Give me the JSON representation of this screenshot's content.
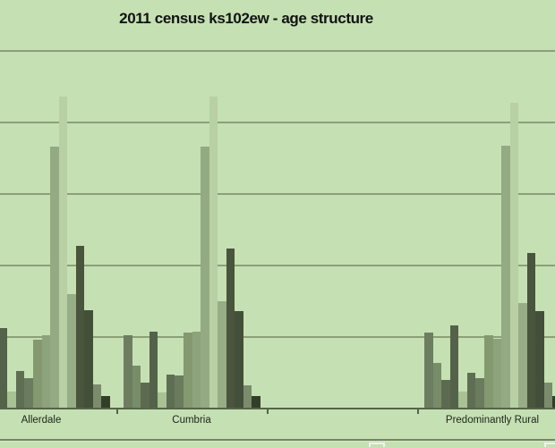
{
  "chart_data": {
    "type": "bar",
    "title": "2011 census ks102ew - age structure",
    "subtitle": "",
    "xlabel": "",
    "ylabel": "",
    "categories": [
      "Allerdale",
      "Cumbria",
      "",
      "Predominantly Rural"
    ],
    "note_visible_layout": "clustered column chart, monochromatic green palette, left edge and bottom legend cropped out of frame; third category slot is empty",
    "ylim": [
      0,
      25
    ],
    "y_unit": "percent",
    "y_gridlines": [
      5,
      10,
      15,
      20,
      25
    ],
    "y_axis_labels_visible": false,
    "grid": true,
    "legend_position": "bottom-cropped",
    "series": [
      {
        "color": "#6d7e60",
        "values": [
          null,
          5.1,
          null,
          5.3
        ]
      },
      {
        "color": "#798c69",
        "values": [
          null,
          3.0,
          null,
          3.2
        ]
      },
      {
        "color": "#5c6b50",
        "values": [
          null,
          1.8,
          null,
          2.0
        ]
      },
      {
        "color": "#536249",
        "values": [
          5.6,
          5.4,
          null,
          5.8
        ]
      },
      {
        "color": "#a9c193",
        "values": [
          1.2,
          1.1,
          null,
          1.2
        ]
      },
      {
        "color": "#5e6e53",
        "values": [
          2.6,
          2.4,
          null,
          2.5
        ]
      },
      {
        "color": "#6a7c5d",
        "values": [
          2.1,
          2.3,
          null,
          2.1
        ]
      },
      {
        "color": "#84996f",
        "values": [
          4.8,
          5.3,
          null,
          5.1
        ]
      },
      {
        "color": "#8da37b",
        "values": [
          5.1,
          5.4,
          null,
          4.9
        ]
      },
      {
        "color": "#93aa82",
        "values": [
          18.3,
          18.3,
          null,
          18.4
        ]
      },
      {
        "color": "#b8d0a4",
        "values": [
          21.8,
          21.8,
          null,
          21.4
        ]
      },
      {
        "color": "#97ad85",
        "values": [
          8.0,
          7.5,
          null,
          7.4
        ]
      },
      {
        "color": "#49553c",
        "values": [
          11.4,
          11.2,
          null,
          10.9
        ]
      },
      {
        "color": "#434f38",
        "values": [
          6.9,
          6.8,
          null,
          6.8
        ]
      },
      {
        "color": "#7b8c6d",
        "values": [
          1.7,
          1.6,
          null,
          1.8
        ]
      },
      {
        "color": "#333e29",
        "values": [
          0.9,
          0.9,
          null,
          0.9
        ]
      }
    ]
  },
  "colors": {
    "background": "#c5e0b3",
    "gridline": "#8ba077",
    "axis": "#55644a",
    "title_text": "#121212",
    "label_text": "#1e241a",
    "legend_box_border": "#f0f2ee"
  }
}
